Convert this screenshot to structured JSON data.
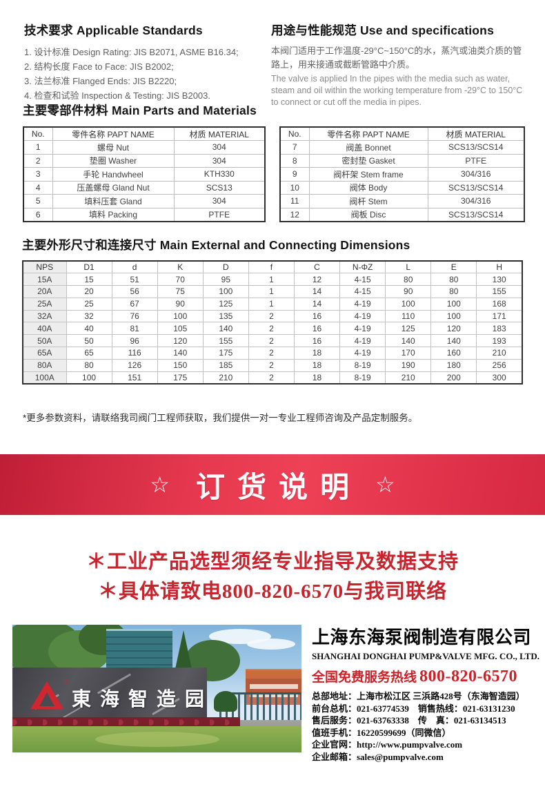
{
  "colors": {
    "banner_red": "#e5384e",
    "banner_red_dark": "#bf1e37",
    "notice_red": "#c7242e",
    "hotline_red": "#ce2026",
    "logo_red": "#cf2630",
    "heading_black": "#141414",
    "body_gray": "#5f5f5f",
    "table_outer_border": "#2e2e2e",
    "dims_first_col_bg": "#ededed"
  },
  "watermark": {
    "symbol": "▲",
    "text": "上海东海泵阀"
  },
  "standards": {
    "title": "技术要求 Applicable Standards",
    "items": [
      "1. 设计标准 Design Rating: JIS B2071, ASME B16.34;",
      "2. 结构长度 Face to Face: JIS B2002;",
      "3. 法兰标准 Flanged Ends: JIS B2220;",
      "4. 检查和试验 Inspection & Testing: JIS B2003."
    ]
  },
  "usage": {
    "title": "用途与性能规范 Use and specifications",
    "text_cn": "本阀门适用于工作温度-29°C~150°C的水，蒸汽或油类介质的管路上，用来接通或截断管路中介质。",
    "text_en": "The valve is applied In the pipes with the media such as water, steam and oil within the working temperature from -29°C to 150°C to connect or cut off the media in pipes."
  },
  "materials": {
    "title": "主要零部件材料 Main Parts and Materials",
    "headers": [
      "No.",
      "零件名称 PAPT NAME",
      "材质 MATERIAL"
    ],
    "left_rows": [
      [
        "1",
        "螺母 Nut",
        "304"
      ],
      [
        "2",
        "垫圈 Washer",
        "304"
      ],
      [
        "3",
        "手轮 Handwheel",
        "KTH330"
      ],
      [
        "4",
        "压盖螺母 Gland Nut",
        "SCS13"
      ],
      [
        "5",
        "填料压套 Gland",
        "304"
      ],
      [
        "6",
        "填料 Packing",
        "PTFE"
      ]
    ],
    "right_rows": [
      [
        "7",
        "阀盖 Bonnet",
        "SCS13/SCS14"
      ],
      [
        "8",
        "密封垫 Gasket",
        "PTFE"
      ],
      [
        "9",
        "阀杆架 Stem frame",
        "304/316"
      ],
      [
        "10",
        "阀体 Body",
        "SCS13/SCS14"
      ],
      [
        "11",
        "阀杆 Stem",
        "304/316"
      ],
      [
        "12",
        "阀板 Disc",
        "SCS13/SCS14"
      ]
    ]
  },
  "dimensions": {
    "title": "主要外形尺寸和连接尺寸 Main External and Connecting Dimensions",
    "headers": [
      "NPS",
      "D1",
      "d",
      "K",
      "D",
      "f",
      "C",
      "N-ΦZ",
      "L",
      "E",
      "H"
    ],
    "rows": [
      [
        "15A",
        "15",
        "51",
        "70",
        "95",
        "1",
        "12",
        "4-15",
        "80",
        "80",
        "130"
      ],
      [
        "20A",
        "20",
        "56",
        "75",
        "100",
        "1",
        "14",
        "4-15",
        "90",
        "80",
        "155"
      ],
      [
        "25A",
        "25",
        "67",
        "90",
        "125",
        "1",
        "14",
        "4-19",
        "100",
        "100",
        "168"
      ],
      [
        "32A",
        "32",
        "76",
        "100",
        "135",
        "2",
        "16",
        "4-19",
        "110",
        "100",
        "171"
      ],
      [
        "40A",
        "40",
        "81",
        "105",
        "140",
        "2",
        "16",
        "4-19",
        "125",
        "120",
        "183"
      ],
      [
        "50A",
        "50",
        "96",
        "120",
        "155",
        "2",
        "16",
        "4-19",
        "140",
        "140",
        "193"
      ],
      [
        "65A",
        "65",
        "116",
        "140",
        "175",
        "2",
        "18",
        "4-19",
        "170",
        "160",
        "210"
      ],
      [
        "80A",
        "80",
        "126",
        "150",
        "185",
        "2",
        "18",
        "8-19",
        "190",
        "180",
        "256"
      ],
      [
        "100A",
        "100",
        "151",
        "175",
        "210",
        "2",
        "18",
        "8-19",
        "210",
        "200",
        "300"
      ]
    ]
  },
  "note": "*更多参数资料，请联络我司阀门工程师获取，我们提供一对一专业工程师咨询及产品定制服务。",
  "banner": {
    "star": "☆",
    "text": "订货说明"
  },
  "notices": [
    "＊工业产品选型须经专业指导及数据支持",
    "＊具体请致电800-820-6570与我司联络"
  ],
  "footer": {
    "photo_sign": "東海智造园",
    "company_cn": "上海东海泵阀制造有限公司",
    "company_en": "SHANGHAI DONGHAI PUMP&VALVE MFG. CO., LTD.",
    "hotline_label": "全国免费服务热线",
    "hotline_number": "800-820-6570",
    "contact_lines": [
      "总部地址：上海市松江区 三浜路428号（东海智造园）",
      "前台总机：021-63774539　销售热线：021-63131230",
      "售后服务：021-63763338　传　真：021-63134513",
      "值班手机：16220599699（同微信）",
      "企业官网：http://www.pumpvalve.com",
      "企业邮箱：sales@pumpvalve.com"
    ]
  }
}
